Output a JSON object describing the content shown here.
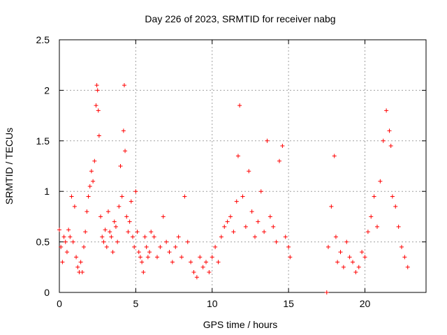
{
  "chart_data": {
    "type": "scatter",
    "title": "Day 226 of 2023, SRMTID for receiver nabg",
    "xlabel": "GPS time / hours",
    "ylabel": "SRMTID / TECUs",
    "xlim": [
      0,
      24
    ],
    "ylim": [
      0,
      2.5
    ],
    "x_ticks": [
      0,
      5,
      10,
      15,
      20
    ],
    "x_tick_labels": [
      "0",
      "5",
      "10",
      "15",
      "20"
    ],
    "y_ticks": [
      0,
      0.5,
      1,
      1.5,
      2,
      2.5
    ],
    "y_tick_labels": [
      "0",
      "0.5",
      "1",
      "1.5",
      "2",
      "2.5"
    ],
    "grid": true,
    "marker": "plus",
    "color": "#ff0000",
    "series": [
      {
        "name": "SRMTID",
        "x": [
          0.0,
          0.1,
          0.2,
          0.3,
          0.4,
          0.5,
          0.6,
          0.7,
          0.8,
          0.9,
          1.0,
          1.1,
          1.2,
          1.3,
          1.4,
          1.5,
          1.6,
          1.7,
          1.8,
          1.9,
          2.0,
          2.1,
          2.2,
          2.3,
          2.4,
          2.45,
          2.5,
          2.55,
          2.6,
          2.7,
          2.8,
          2.9,
          3.0,
          3.1,
          3.2,
          3.3,
          3.4,
          3.5,
          3.6,
          3.7,
          3.8,
          3.9,
          4.0,
          4.1,
          4.2,
          4.25,
          4.3,
          4.4,
          4.5,
          4.6,
          4.7,
          4.8,
          4.9,
          5.0,
          5.1,
          5.2,
          5.3,
          5.4,
          5.5,
          5.6,
          5.7,
          5.8,
          5.9,
          6.0,
          6.2,
          6.4,
          6.6,
          6.8,
          7.0,
          7.2,
          7.4,
          7.6,
          7.8,
          8.0,
          8.2,
          8.4,
          8.6,
          8.8,
          9.0,
          9.2,
          9.4,
          9.6,
          9.8,
          10.0,
          10.2,
          10.4,
          10.6,
          10.8,
          11.0,
          11.2,
          11.4,
          11.6,
          11.7,
          11.8,
          12.0,
          12.2,
          12.4,
          12.6,
          12.8,
          13.0,
          13.2,
          13.4,
          13.6,
          13.8,
          14.0,
          14.2,
          14.4,
          14.6,
          14.8,
          15.0,
          15.1,
          17.5,
          17.6,
          17.8,
          18.0,
          18.1,
          18.2,
          18.4,
          18.6,
          18.8,
          19.0,
          19.2,
          19.4,
          19.6,
          19.8,
          20.0,
          20.2,
          20.4,
          20.6,
          20.8,
          21.0,
          21.2,
          21.4,
          21.6,
          21.7,
          21.8,
          22.0,
          22.2,
          22.4,
          22.6,
          22.8
        ],
        "y": [
          0.62,
          0.45,
          0.3,
          0.55,
          0.5,
          0.4,
          0.62,
          0.55,
          0.95,
          0.5,
          0.85,
          0.35,
          0.25,
          0.2,
          0.3,
          0.2,
          0.45,
          0.6,
          0.8,
          0.95,
          1.05,
          1.2,
          1.1,
          1.3,
          1.85,
          2.05,
          2.0,
          1.8,
          1.55,
          0.75,
          0.55,
          0.5,
          0.62,
          0.45,
          0.8,
          0.6,
          0.55,
          0.4,
          0.7,
          0.65,
          0.5,
          0.85,
          1.25,
          0.95,
          1.6,
          2.05,
          1.4,
          0.75,
          0.6,
          0.7,
          0.9,
          0.55,
          0.45,
          1.0,
          0.6,
          0.4,
          0.35,
          0.3,
          0.2,
          0.55,
          0.45,
          0.35,
          0.4,
          0.6,
          0.55,
          0.35,
          0.45,
          0.75,
          0.5,
          0.4,
          0.3,
          0.45,
          0.55,
          0.35,
          0.95,
          0.5,
          0.3,
          0.2,
          0.15,
          0.35,
          0.25,
          0.3,
          0.2,
          0.35,
          0.45,
          0.3,
          0.55,
          0.65,
          0.7,
          0.75,
          0.6,
          0.9,
          1.35,
          1.85,
          0.95,
          0.65,
          1.2,
          0.8,
          0.55,
          0.7,
          1.0,
          0.6,
          1.5,
          0.75,
          0.65,
          0.5,
          1.3,
          1.45,
          0.55,
          0.45,
          0.35,
          0.0,
          0.45,
          0.85,
          1.35,
          0.55,
          0.3,
          0.4,
          0.25,
          0.5,
          0.35,
          0.3,
          0.2,
          0.25,
          0.4,
          0.35,
          0.6,
          0.75,
          0.95,
          0.65,
          1.1,
          1.5,
          1.8,
          1.6,
          1.45,
          0.95,
          0.85,
          0.65,
          0.45,
          0.35,
          0.25
        ]
      }
    ]
  }
}
